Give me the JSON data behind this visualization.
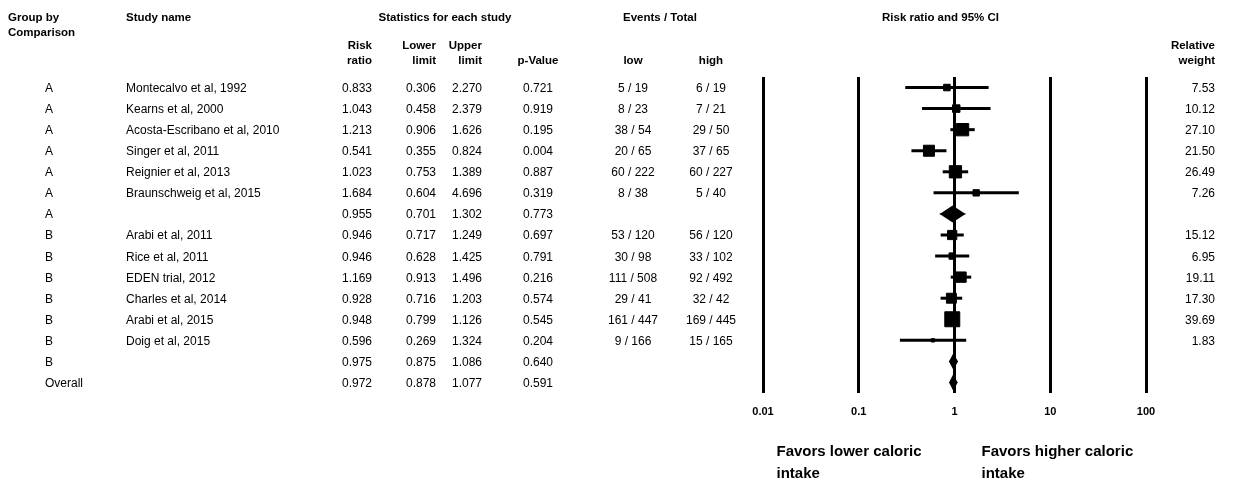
{
  "chart_data": [
    {
      "type": "other",
      "categories": [
        "Group by Comparison",
        "Study name",
        "Risk ratio",
        "Lower limit",
        "Upper limit",
        "p-Value",
        "low",
        "high",
        "Relative weight"
      ],
      "annotations": [
        "Statistics for each study",
        "Events / Total"
      ],
      "cell_labels": [
        [
          "A",
          "Montecalvo et al, 1992",
          "0.833",
          "0.306",
          "2.270",
          "0.721",
          "5 / 19",
          "6 / 19",
          "7.53"
        ],
        [
          "A",
          "Kearns et al, 2000",
          "1.043",
          "0.458",
          "2.379",
          "0.919",
          "8 / 23",
          "7 / 21",
          "10.12"
        ],
        [
          "A",
          "Acosta-Escribano et al, 2010",
          "1.213",
          "0.906",
          "1.626",
          "0.195",
          "38 / 54",
          "29 / 50",
          "27.10"
        ],
        [
          "A",
          "Singer et al, 2011",
          "0.541",
          "0.355",
          "0.824",
          "0.004",
          "20 / 65",
          "37 / 65",
          "21.50"
        ],
        [
          "A",
          "Reignier et al, 2013",
          "1.023",
          "0.753",
          "1.389",
          "0.887",
          "60 / 222",
          "60 / 227",
          "26.49"
        ],
        [
          "A",
          "Braunschweig et al, 2015",
          "1.684",
          "0.604",
          "4.696",
          "0.319",
          "8 / 38",
          "5 / 40",
          "7.26"
        ],
        [
          "A",
          null,
          "0.955",
          "0.701",
          "1.302",
          "0.773",
          null,
          null,
          null
        ],
        [
          "B",
          "Arabi et al, 2011",
          "0.946",
          "0.717",
          "1.249",
          "0.697",
          "53 / 120",
          "56 / 120",
          "15.12"
        ],
        [
          "B",
          "Rice et al, 2011",
          "0.946",
          "0.628",
          "1.425",
          "0.791",
          "30 / 98",
          "33 / 102",
          "6.95"
        ],
        [
          "B",
          "EDEN trial, 2012",
          "1.169",
          "0.913",
          "1.496",
          "0.216",
          "111 / 508",
          "92 / 492",
          "19.11"
        ],
        [
          "B",
          "Charles et al, 2014",
          "0.928",
          "0.716",
          "1.203",
          "0.574",
          "29 / 41",
          "32 / 42",
          "17.30"
        ],
        [
          "B",
          "Arabi et al, 2015",
          "0.948",
          "0.799",
          "1.126",
          "0.545",
          "161 / 447",
          "169 / 445",
          "39.69"
        ],
        [
          "B",
          "Doig et al, 2015",
          "0.596",
          "0.269",
          "1.324",
          "0.204",
          "9 / 166",
          "15 / 165",
          "1.83"
        ],
        [
          "B",
          null,
          "0.975",
          "0.875",
          "1.086",
          "0.640",
          null,
          null,
          null
        ],
        [
          "Overall",
          null,
          "0.972",
          "0.878",
          "1.077",
          "0.591",
          null,
          null,
          null
        ]
      ]
    },
    {
      "type": "scatter",
      "orientation": "horizontal",
      "title": "Risk ratio and 95% CI",
      "categories": [
        null,
        null,
        null,
        null,
        null,
        null,
        null,
        null,
        null,
        null,
        null,
        null,
        null,
        null,
        null
      ],
      "series": [
        {
          "marker": "square",
          "color": "#000000",
          "values": [
            0.833,
            1.043,
            1.213,
            0.541,
            1.023,
            1.684,
            null,
            0.946,
            0.946,
            1.169,
            0.928,
            0.948,
            0.596,
            null,
            null
          ],
          "errors": [
            [
              0.306,
              2.27
            ],
            [
              0.458,
              2.379
            ],
            [
              0.906,
              1.626
            ],
            [
              0.355,
              0.824
            ],
            [
              0.753,
              1.389
            ],
            [
              0.604,
              4.696
            ],
            null,
            [
              0.717,
              1.249
            ],
            [
              0.628,
              1.425
            ],
            [
              0.913,
              1.496
            ],
            [
              0.716,
              1.203
            ],
            [
              0.799,
              1.126
            ],
            [
              0.269,
              1.324
            ],
            null,
            null
          ],
          "sizes": [
            0.19,
            0.25,
            0.68,
            0.54,
            0.67,
            0.18,
            null,
            0.38,
            0.18,
            0.48,
            0.44,
            1,
            0.05,
            null,
            null
          ]
        },
        {
          "marker": "diamond",
          "color": "#000000",
          "values": [
            null,
            null,
            null,
            null,
            null,
            null,
            0.955,
            null,
            null,
            null,
            null,
            null,
            null,
            0.975,
            0.972
          ],
          "errors": [
            null,
            null,
            null,
            null,
            null,
            null,
            [
              0.701,
              1.302
            ],
            null,
            null,
            null,
            null,
            null,
            null,
            [
              0.875,
              1.086
            ],
            [
              0.878,
              1.077
            ]
          ]
        }
      ],
      "log": "x",
      "xlim": [
        0.01,
        100
      ],
      "xticks": [
        0.01,
        0.1,
        1,
        10,
        100
      ],
      "grid": "x",
      "tick_labels": "x",
      "annotations": [
        "Favors lower caloric intake",
        "Favors higher caloric intake"
      ]
    }
  ]
}
